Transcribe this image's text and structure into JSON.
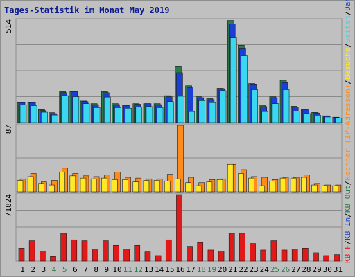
{
  "chart_data": {
    "type": "bar",
    "title": "Tages-Statistik im Monat May 2019",
    "categories": [
      "1",
      "2",
      "3",
      "4",
      "5",
      "6",
      "7",
      "8",
      "9",
      "10",
      "11",
      "12",
      "13",
      "14",
      "15",
      "16",
      "17",
      "18",
      "19",
      "20",
      "21",
      "22",
      "23",
      "24",
      "25",
      "26",
      "27",
      "28",
      "29",
      "30",
      "31"
    ],
    "weekend_days": [
      "4",
      "5",
      "11",
      "12",
      "18",
      "19",
      "25",
      "26"
    ],
    "colors": {
      "anfragen": "#2d7a4d",
      "dateien": "#1a3fd6",
      "seiten": "#3ad8f0",
      "rechner": "#ff8c1a",
      "besuche": "#ffe828",
      "kbf": "#e01a1a",
      "weekday_label": "#000000",
      "weekend_label": "#2d7a4d",
      "title": "#0a1a8c"
    },
    "panels": [
      {
        "max_label": "514",
        "ylim": [
          0,
          514
        ],
        "series": [
          {
            "name": "Anfragen",
            "values": [
              100,
              100,
              65,
              50,
              155,
              155,
              108,
              95,
              155,
              95,
              88,
              95,
              95,
              95,
              135,
              280,
              185,
              130,
              120,
              172,
              512,
              388,
              196,
              85,
              130,
              212,
              82,
              67,
              51,
              34,
              27
            ]
          },
          {
            "name": "Dateien",
            "values": [
              100,
              100,
              60,
              45,
              150,
              155,
              105,
              90,
              150,
              90,
              85,
              92,
              95,
              90,
              130,
              250,
              175,
              125,
              115,
              170,
              495,
              370,
              190,
              80,
              125,
              200,
              78,
              64,
              48,
              32,
              25
            ]
          },
          {
            "name": "Seiten",
            "values": [
              88,
              85,
              52,
              38,
              135,
              130,
              95,
              75,
              128,
              75,
              72,
              78,
              80,
              75,
              105,
              132,
              55,
              110,
              100,
              160,
              425,
              335,
              165,
              55,
              95,
              165,
              57,
              45,
              37,
              28,
              23
            ]
          }
        ]
      },
      {
        "max_label": "87",
        "ylim": [
          0,
          87
        ],
        "series": [
          {
            "name": "Rechner",
            "values": [
              17,
              24,
              13,
              15,
              31,
              24,
              21,
              20,
              22,
              26,
              19,
              18,
              17,
              17,
              23,
              87,
              19,
              12,
              16,
              17,
              36,
              29,
              20,
              19,
              16,
              19,
              19,
              22,
              11,
              9,
              9
            ]
          },
          {
            "name": "Besuche",
            "values": [
              15,
              20,
              11,
              9,
              26,
              21,
              18,
              17,
              18,
              16,
              16,
              13,
              15,
              15,
              14,
              17,
              12,
              8,
              13,
              16,
              36,
              24,
              18,
              8,
              14,
              18,
              18,
              19,
              9,
              8,
              8
            ]
          }
        ]
      },
      {
        "max_label": "71824",
        "ylim": [
          0,
          71824
        ],
        "series": [
          {
            "name": "KB F",
            "values": [
              14000,
              22000,
              11000,
              5000,
              30000,
              23000,
              22000,
              13000,
              22000,
              17000,
              13000,
              17000,
              10000,
              6000,
              23000,
              71824,
              16000,
              20000,
              12000,
              11000,
              30000,
              30000,
              19000,
              12000,
              22000,
              12000,
              13000,
              14000,
              9000,
              6000,
              7000
            ]
          }
        ]
      }
    ],
    "legend": [
      {
        "text": "KB F",
        "color": "#e01a1a"
      },
      {
        "text": "KB In",
        "color": "#1a3fd6"
      },
      {
        "text": "KB Out",
        "color": "#2d7a4d"
      },
      {
        "text": "Rechner (IP-Adressen)",
        "color": "#ff8c1a"
      },
      {
        "text": "Besuche",
        "color": "#ffe828"
      },
      {
        "text": "Seiten",
        "color": "#3ad8f0"
      },
      {
        "text": "Dateien",
        "color": "#1a3fd6"
      },
      {
        "text": "Anfragen",
        "color": "#2d7a4d"
      }
    ],
    "grid": true
  }
}
